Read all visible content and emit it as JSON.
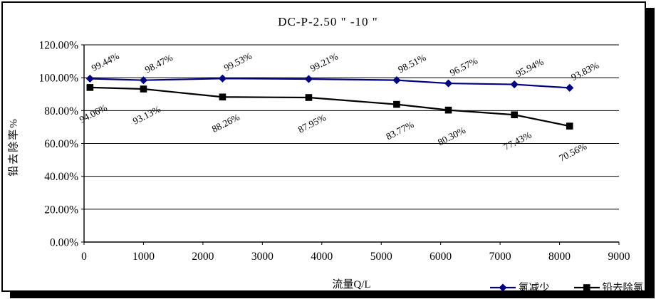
{
  "window": {
    "background": "#ffffff",
    "frame_color": "#000000"
  },
  "chart_data": {
    "type": "line",
    "title": "DC-P-2.50 \" -10 \"",
    "xlabel": "流量Q/L",
    "ylabel": "铅去除率%",
    "xlim": [
      0,
      9000
    ],
    "ylim_pct": [
      0,
      120
    ],
    "grid": "horizontal",
    "legend_position": "bottom-right",
    "y_tick_labels": [
      "0.00%",
      "20.00%",
      "40.00%",
      "60.00%",
      "80.00%",
      "100.00%",
      "120.00%"
    ],
    "x_tick_labels": [
      "0",
      "1000",
      "2000",
      "3000",
      "4000",
      "5000",
      "6000",
      "7000",
      "8000",
      "9000"
    ],
    "x": [
      100,
      1000,
      2330,
      3780,
      5260,
      6130,
      7240,
      8170
    ],
    "series": [
      {
        "name": "氯减少",
        "color": "#000080",
        "marker": "diamond",
        "values_pct": [
          99.44,
          98.47,
          99.53,
          99.21,
          98.51,
          96.57,
          95.94,
          93.83
        ],
        "point_labels": [
          "99.44%",
          "98.47%",
          "99.53%",
          "99.21%",
          "98.51%",
          "96.57%",
          "95.94%",
          "93.83%"
        ]
      },
      {
        "name": "铅去除氯",
        "color": "#000000",
        "marker": "square",
        "values_pct": [
          94.06,
          93.13,
          88.26,
          87.95,
          83.77,
          80.3,
          77.43,
          70.56
        ],
        "point_labels": [
          "94.06%",
          "93.13%",
          "88.26%",
          "87.95%",
          "83.77%",
          "80.30%",
          "77.43%",
          "70.56%"
        ]
      }
    ]
  }
}
